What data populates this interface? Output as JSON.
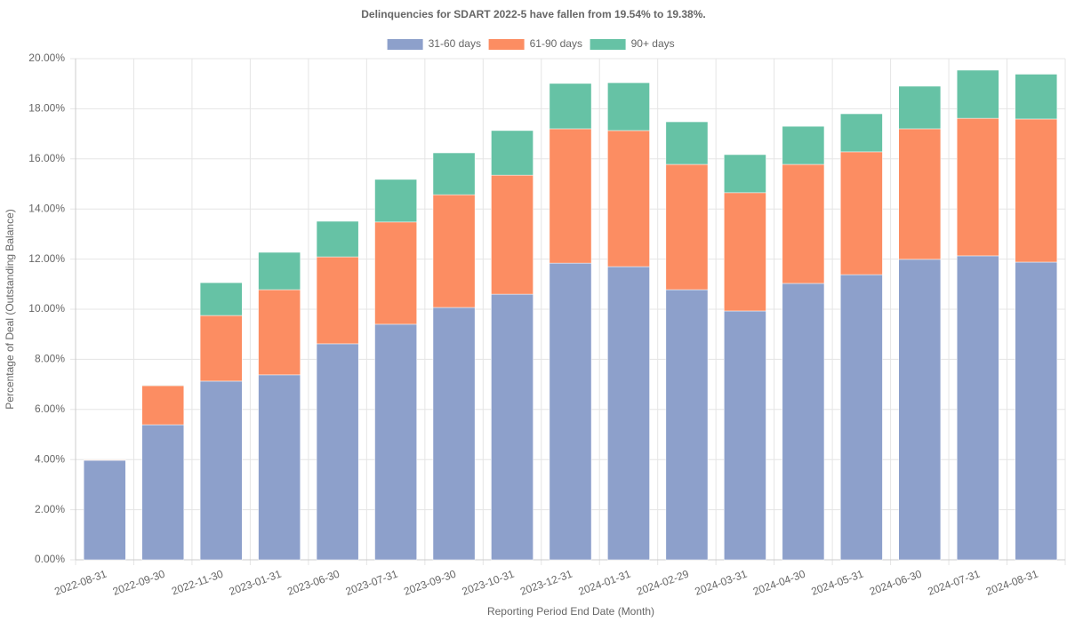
{
  "chart_data": {
    "type": "stacked_bar",
    "title": "Delinquencies for SDART 2022-5 have fallen from 19.54% to 19.38%.",
    "x_label": "Reporting Period End Date (Month)",
    "y_label": "Percentage of Deal (Outstanding Balance)",
    "categories": [
      "2022-08-31",
      "2022-09-30",
      "2022-11-30",
      "2023-01-31",
      "2023-06-30",
      "2023-07-31",
      "2023-09-30",
      "2023-10-31",
      "2023-12-31",
      "2024-01-31",
      "2024-02-29",
      "2024-03-31",
      "2024-04-30",
      "2024-05-31",
      "2024-06-30",
      "2024-07-31",
      "2024-08-31"
    ],
    "series": [
      {
        "name": "31-60 days",
        "color": "#8da0cb",
        "values": [
          3.97,
          5.39,
          7.13,
          7.38,
          8.62,
          9.4,
          10.07,
          10.6,
          11.84,
          11.7,
          10.78,
          9.93,
          11.03,
          11.38,
          11.99,
          12.13,
          11.88
        ]
      },
      {
        "name": "61-90 days",
        "color": "#fc8d62",
        "values": [
          0.02,
          1.56,
          2.62,
          3.4,
          3.47,
          4.08,
          4.5,
          4.75,
          5.36,
          5.43,
          5.0,
          4.72,
          4.75,
          4.9,
          5.21,
          5.49,
          5.71
        ]
      },
      {
        "name": "90+ days",
        "color": "#66c2a5",
        "values": [
          0,
          0.02,
          1.31,
          1.49,
          1.42,
          1.7,
          1.67,
          1.78,
          1.81,
          1.91,
          1.7,
          1.52,
          1.52,
          1.52,
          1.7,
          1.92,
          1.79
        ]
      }
    ],
    "ylim": [
      0,
      20
    ],
    "yticks": [
      {
        "value": 0,
        "label": "0.00%"
      },
      {
        "value": 2,
        "label": "2.00%"
      },
      {
        "value": 4,
        "label": "4.00%"
      },
      {
        "value": 6,
        "label": "6.00%"
      },
      {
        "value": 8,
        "label": "8.00%"
      },
      {
        "value": 10,
        "label": "10.00%"
      },
      {
        "value": 12,
        "label": "12.00%"
      },
      {
        "value": 14,
        "label": "14.00%"
      },
      {
        "value": 16,
        "label": "16.00%"
      },
      {
        "value": 18,
        "label": "18.00%"
      },
      {
        "value": 20,
        "label": "20.00%"
      }
    ],
    "grid": true,
    "legend": "top"
  }
}
